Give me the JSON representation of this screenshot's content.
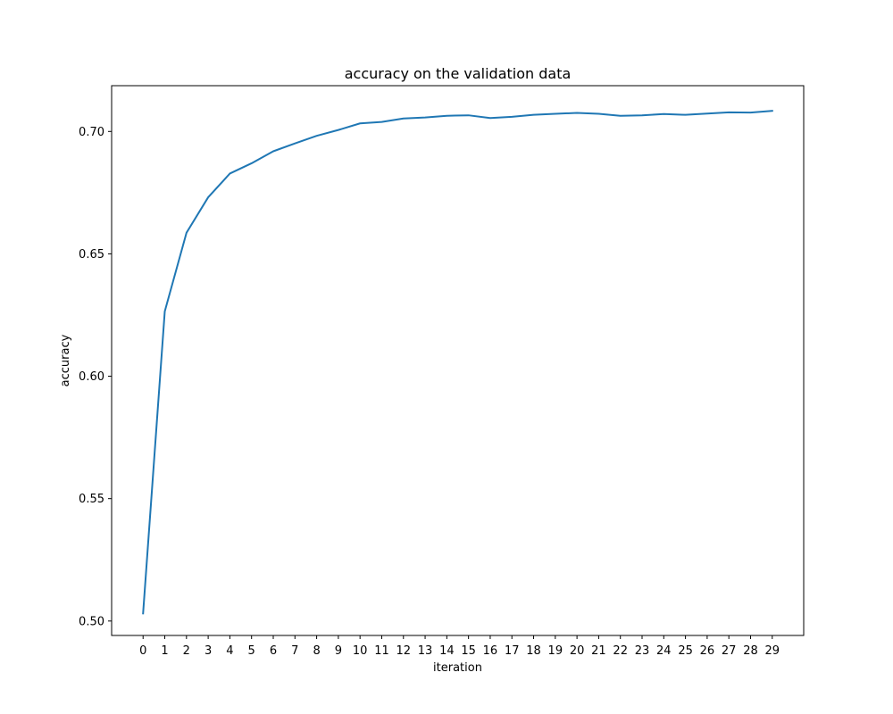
{
  "chart_data": {
    "type": "line",
    "title": "accuracy on the validation data",
    "xlabel": "iteration",
    "ylabel": "accuracy",
    "x": [
      0,
      1,
      2,
      3,
      4,
      5,
      6,
      7,
      8,
      9,
      10,
      11,
      12,
      13,
      14,
      15,
      16,
      17,
      18,
      19,
      20,
      21,
      22,
      23,
      24,
      25,
      26,
      27,
      28,
      29
    ],
    "x_tick_labels": [
      "0",
      "1",
      "2",
      "3",
      "4",
      "5",
      "6",
      "7",
      "8",
      "9",
      "10",
      "11",
      "12",
      "13",
      "14",
      "15",
      "16",
      "17",
      "18",
      "19",
      "20",
      "21",
      "22",
      "23",
      "24",
      "25",
      "26",
      "27",
      "28",
      "29"
    ],
    "y_ticks": [
      0.5,
      0.55,
      0.6,
      0.65,
      0.7
    ],
    "y_tick_labels": [
      "0.50",
      "0.55",
      "0.60",
      "0.65",
      "0.70"
    ],
    "xlim": [
      -1.45,
      30.45
    ],
    "ylim": [
      0.4941,
      0.7187
    ],
    "series": [
      {
        "color": "#1f77b4",
        "values": [
          0.5031,
          0.6265,
          0.6586,
          0.6731,
          0.6828,
          0.687,
          0.6919,
          0.6951,
          0.6982,
          0.7006,
          0.7033,
          0.7039,
          0.7053,
          0.7057,
          0.7064,
          0.7066,
          0.7055,
          0.706,
          0.7068,
          0.7072,
          0.7076,
          0.7072,
          0.7064,
          0.7066,
          0.7071,
          0.7068,
          0.7073,
          0.7078,
          0.7077,
          0.7084
        ]
      }
    ],
    "grid": false,
    "legend": false
  }
}
